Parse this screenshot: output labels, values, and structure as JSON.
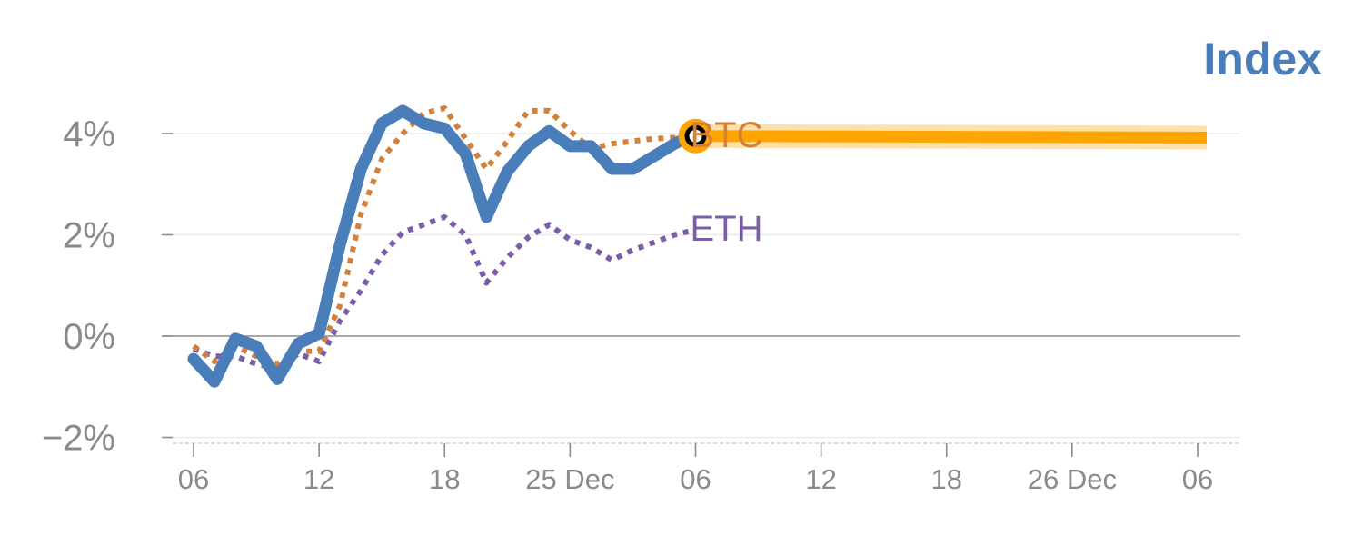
{
  "chart_data": {
    "type": "line",
    "title": "Index",
    "xlabel": "",
    "ylabel": "",
    "ylim": [
      -2.1,
      4.5
    ],
    "y_ticks": [
      {
        "value": 4,
        "label": "4%"
      },
      {
        "value": 2,
        "label": "2%"
      },
      {
        "value": 0,
        "label": "0%"
      },
      {
        "value": -2,
        "label": "−2%"
      }
    ],
    "x_range": [
      0,
      48
    ],
    "x_ticks": [
      {
        "value": 0,
        "label": "06"
      },
      {
        "value": 6,
        "label": "12"
      },
      {
        "value": 12,
        "label": "18"
      },
      {
        "value": 18,
        "label": "25 Dec"
      },
      {
        "value": 24,
        "label": "06"
      },
      {
        "value": 30,
        "label": "12"
      },
      {
        "value": 36,
        "label": "18"
      },
      {
        "value": 42,
        "label": "26 Dec"
      },
      {
        "value": 48,
        "label": "06"
      }
    ],
    "series": [
      {
        "name": "Index",
        "color": "#4a7ebb",
        "style": "solid",
        "x": [
          0,
          1,
          2,
          3,
          4,
          5,
          6,
          7,
          8,
          9,
          10,
          11,
          12,
          13,
          14,
          15,
          16,
          17,
          18,
          19,
          20,
          21,
          22,
          23,
          24
        ],
        "values": [
          -0.45,
          -0.9,
          -0.05,
          -0.2,
          -0.85,
          -0.15,
          0.05,
          1.8,
          3.3,
          4.2,
          4.45,
          4.2,
          4.1,
          3.6,
          2.35,
          3.25,
          3.75,
          4.05,
          3.75,
          3.75,
          3.3,
          3.3,
          3.55,
          3.8,
          4.0
        ]
      },
      {
        "name": "BTC",
        "color": "#d3803a",
        "style": "dotted",
        "x": [
          0,
          1,
          2,
          3,
          4,
          5,
          6,
          7,
          8,
          9,
          10,
          11,
          12,
          13,
          14,
          15,
          16,
          17,
          18,
          19,
          20,
          21,
          22,
          23,
          24
        ],
        "values": [
          -0.2,
          -0.5,
          -0.2,
          -0.4,
          -0.55,
          -0.3,
          -0.3,
          0.6,
          2.4,
          3.5,
          4.0,
          4.4,
          4.5,
          3.9,
          3.3,
          3.85,
          4.45,
          4.45,
          4.05,
          3.7,
          3.8,
          3.85,
          3.9,
          3.92,
          3.95
        ],
        "label": "BTC"
      },
      {
        "name": "ETH",
        "color": "#7b5ea7",
        "style": "dotted",
        "x": [
          0,
          1,
          2,
          3,
          4,
          5,
          6,
          7,
          8,
          9,
          10,
          11,
          12,
          13,
          14,
          15,
          16,
          17,
          18,
          19,
          20,
          21,
          22,
          23,
          24
        ],
        "values": [
          -0.25,
          -0.4,
          -0.4,
          -0.55,
          -0.65,
          -0.35,
          -0.5,
          0.3,
          0.9,
          1.6,
          2.05,
          2.2,
          2.35,
          2.0,
          1.05,
          1.55,
          1.95,
          2.2,
          1.9,
          1.75,
          1.5,
          1.7,
          1.85,
          2.0,
          2.1
        ],
        "label": "ETH"
      }
    ],
    "forecast": {
      "color": "#ffa500",
      "x": [
        24,
        48
      ],
      "values": [
        3.95,
        3.92
      ]
    },
    "end_marker": {
      "x": 24,
      "value": 3.95,
      "color": "#ffa500"
    }
  }
}
